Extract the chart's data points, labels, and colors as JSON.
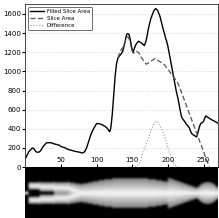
{
  "xlim": [
    0,
    270
  ],
  "ylim": [
    0,
    1700
  ],
  "yticks": [
    0,
    200,
    400,
    600,
    800,
    1000,
    1200,
    1400,
    1600
  ],
  "xticks": [
    50,
    100,
    150,
    200,
    250
  ],
  "grid_color": "#c8c8c8",
  "line_filled_color": "#000000",
  "line_slice_color": "#555555",
  "line_diff_color": "#999999",
  "legend_labels": [
    "Filled Slice Area",
    "Slice Area",
    "Difference"
  ],
  "filled_slice_area": [
    [
      1,
      100
    ],
    [
      5,
      160
    ],
    [
      8,
      185
    ],
    [
      10,
      200
    ],
    [
      12,
      195
    ],
    [
      15,
      160
    ],
    [
      18,
      155
    ],
    [
      20,
      160
    ],
    [
      22,
      175
    ],
    [
      25,
      215
    ],
    [
      28,
      240
    ],
    [
      30,
      255
    ],
    [
      33,
      255
    ],
    [
      36,
      255
    ],
    [
      38,
      250
    ],
    [
      40,
      245
    ],
    [
      42,
      240
    ],
    [
      45,
      235
    ],
    [
      48,
      228
    ],
    [
      50,
      215
    ],
    [
      55,
      205
    ],
    [
      60,
      185
    ],
    [
      65,
      175
    ],
    [
      70,
      165
    ],
    [
      75,
      158
    ],
    [
      80,
      148
    ],
    [
      83,
      158
    ],
    [
      86,
      200
    ],
    [
      89,
      270
    ],
    [
      92,
      340
    ],
    [
      95,
      390
    ],
    [
      98,
      430
    ],
    [
      100,
      455
    ],
    [
      103,
      455
    ],
    [
      106,
      448
    ],
    [
      109,
      438
    ],
    [
      112,
      425
    ],
    [
      115,
      405
    ],
    [
      117,
      385
    ],
    [
      118,
      370
    ],
    [
      119,
      380
    ],
    [
      120,
      410
    ],
    [
      122,
      550
    ],
    [
      124,
      750
    ],
    [
      126,
      950
    ],
    [
      128,
      1080
    ],
    [
      130,
      1140
    ],
    [
      132,
      1160
    ],
    [
      134,
      1180
    ],
    [
      136,
      1200
    ],
    [
      137,
      1220
    ],
    [
      138,
      1250
    ],
    [
      139,
      1280
    ],
    [
      140,
      1310
    ],
    [
      141,
      1350
    ],
    [
      142,
      1380
    ],
    [
      143,
      1390
    ],
    [
      144,
      1395
    ],
    [
      145,
      1390
    ],
    [
      146,
      1370
    ],
    [
      147,
      1340
    ],
    [
      148,
      1300
    ],
    [
      149,
      1260
    ],
    [
      150,
      1220
    ],
    [
      151,
      1200
    ],
    [
      152,
      1220
    ],
    [
      153,
      1240
    ],
    [
      154,
      1260
    ],
    [
      155,
      1280
    ],
    [
      156,
      1290
    ],
    [
      157,
      1300
    ],
    [
      158,
      1310
    ],
    [
      159,
      1315
    ],
    [
      160,
      1310
    ],
    [
      161,
      1305
    ],
    [
      162,
      1300
    ],
    [
      163,
      1295
    ],
    [
      164,
      1290
    ],
    [
      165,
      1280
    ],
    [
      166,
      1280
    ],
    [
      167,
      1270
    ],
    [
      168,
      1290
    ],
    [
      169,
      1310
    ],
    [
      170,
      1340
    ],
    [
      171,
      1380
    ],
    [
      172,
      1420
    ],
    [
      173,
      1460
    ],
    [
      174,
      1490
    ],
    [
      175,
      1520
    ],
    [
      176,
      1550
    ],
    [
      177,
      1570
    ],
    [
      178,
      1590
    ],
    [
      179,
      1610
    ],
    [
      180,
      1630
    ],
    [
      181,
      1640
    ],
    [
      182,
      1650
    ],
    [
      183,
      1655
    ],
    [
      184,
      1650
    ],
    [
      185,
      1640
    ],
    [
      186,
      1630
    ],
    [
      187,
      1610
    ],
    [
      188,
      1590
    ],
    [
      189,
      1570
    ],
    [
      190,
      1540
    ],
    [
      191,
      1510
    ],
    [
      192,
      1480
    ],
    [
      193,
      1450
    ],
    [
      194,
      1420
    ],
    [
      195,
      1400
    ],
    [
      196,
      1370
    ],
    [
      197,
      1340
    ],
    [
      198,
      1320
    ],
    [
      199,
      1290
    ],
    [
      200,
      1260
    ],
    [
      201,
      1220
    ],
    [
      202,
      1180
    ],
    [
      203,
      1140
    ],
    [
      204,
      1100
    ],
    [
      205,
      1060
    ],
    [
      206,
      1020
    ],
    [
      207,
      980
    ],
    [
      208,
      940
    ],
    [
      209,
      900
    ],
    [
      210,
      860
    ],
    [
      211,
      820
    ],
    [
      212,
      780
    ],
    [
      213,
      750
    ],
    [
      214,
      720
    ],
    [
      215,
      680
    ],
    [
      216,
      640
    ],
    [
      217,
      600
    ],
    [
      218,
      560
    ],
    [
      219,
      530
    ],
    [
      220,
      510
    ],
    [
      221,
      500
    ],
    [
      222,
      490
    ],
    [
      223,
      480
    ],
    [
      224,
      470
    ],
    [
      225,
      455
    ],
    [
      226,
      445
    ],
    [
      227,
      440
    ],
    [
      228,
      430
    ],
    [
      229,
      420
    ],
    [
      230,
      410
    ],
    [
      231,
      390
    ],
    [
      232,
      370
    ],
    [
      233,
      355
    ],
    [
      234,
      345
    ],
    [
      235,
      340
    ],
    [
      236,
      335
    ],
    [
      237,
      330
    ],
    [
      238,
      325
    ],
    [
      239,
      320
    ],
    [
      240,
      315
    ],
    [
      241,
      330
    ],
    [
      242,
      360
    ],
    [
      243,
      390
    ],
    [
      244,
      420
    ],
    [
      245,
      440
    ],
    [
      246,
      455
    ],
    [
      247,
      460
    ],
    [
      248,
      465
    ],
    [
      249,
      470
    ],
    [
      250,
      480
    ],
    [
      251,
      500
    ],
    [
      252,
      520
    ],
    [
      253,
      535
    ],
    [
      254,
      530
    ],
    [
      255,
      525
    ],
    [
      256,
      520
    ],
    [
      257,
      515
    ],
    [
      258,
      510
    ],
    [
      259,
      505
    ],
    [
      260,
      500
    ],
    [
      265,
      480
    ],
    [
      270,
      460
    ]
  ],
  "slice_area": [
    [
      130,
      1140
    ],
    [
      131,
      1165
    ],
    [
      132,
      1190
    ],
    [
      133,
      1210
    ],
    [
      134,
      1220
    ],
    [
      135,
      1230
    ],
    [
      136,
      1240
    ],
    [
      137,
      1250
    ],
    [
      138,
      1270
    ],
    [
      139,
      1290
    ],
    [
      140,
      1310
    ],
    [
      141,
      1330
    ],
    [
      142,
      1345
    ],
    [
      143,
      1355
    ],
    [
      144,
      1360
    ],
    [
      145,
      1350
    ],
    [
      146,
      1330
    ],
    [
      147,
      1300
    ],
    [
      148,
      1270
    ],
    [
      149,
      1240
    ],
    [
      150,
      1215
    ],
    [
      151,
      1195
    ],
    [
      152,
      1190
    ],
    [
      153,
      1200
    ],
    [
      154,
      1210
    ],
    [
      155,
      1215
    ],
    [
      156,
      1210
    ],
    [
      157,
      1205
    ],
    [
      158,
      1200
    ],
    [
      159,
      1195
    ],
    [
      160,
      1185
    ],
    [
      161,
      1170
    ],
    [
      162,
      1150
    ],
    [
      163,
      1140
    ],
    [
      164,
      1135
    ],
    [
      165,
      1120
    ],
    [
      166,
      1110
    ],
    [
      167,
      1100
    ],
    [
      168,
      1090
    ],
    [
      169,
      1080
    ],
    [
      170,
      1075
    ],
    [
      171,
      1080
    ],
    [
      172,
      1085
    ],
    [
      173,
      1090
    ],
    [
      174,
      1095
    ],
    [
      175,
      1100
    ],
    [
      176,
      1105
    ],
    [
      177,
      1110
    ],
    [
      178,
      1115
    ],
    [
      179,
      1120
    ],
    [
      180,
      1125
    ],
    [
      181,
      1130
    ],
    [
      182,
      1135
    ],
    [
      183,
      1130
    ],
    [
      184,
      1125
    ],
    [
      185,
      1120
    ],
    [
      186,
      1115
    ],
    [
      187,
      1110
    ],
    [
      188,
      1105
    ],
    [
      189,
      1100
    ],
    [
      190,
      1095
    ],
    [
      191,
      1090
    ],
    [
      192,
      1085
    ],
    [
      193,
      1080
    ],
    [
      194,
      1075
    ],
    [
      195,
      1070
    ],
    [
      196,
      1060
    ],
    [
      197,
      1050
    ],
    [
      198,
      1040
    ],
    [
      199,
      1030
    ],
    [
      200,
      1020
    ],
    [
      201,
      1010
    ],
    [
      202,
      1000
    ],
    [
      203,
      990
    ],
    [
      204,
      980
    ],
    [
      205,
      970
    ],
    [
      206,
      960
    ],
    [
      207,
      950
    ],
    [
      208,
      940
    ],
    [
      209,
      930
    ],
    [
      210,
      920
    ],
    [
      211,
      910
    ],
    [
      212,
      900
    ],
    [
      213,
      890
    ],
    [
      214,
      875
    ],
    [
      215,
      860
    ],
    [
      216,
      840
    ],
    [
      217,
      820
    ],
    [
      218,
      800
    ],
    [
      219,
      780
    ],
    [
      220,
      760
    ],
    [
      221,
      740
    ],
    [
      222,
      720
    ],
    [
      223,
      700
    ],
    [
      224,
      680
    ],
    [
      225,
      660
    ],
    [
      226,
      640
    ],
    [
      227,
      620
    ],
    [
      228,
      600
    ],
    [
      229,
      580
    ],
    [
      230,
      560
    ],
    [
      231,
      540
    ],
    [
      232,
      520
    ],
    [
      233,
      500
    ],
    [
      234,
      480
    ],
    [
      235,
      460
    ],
    [
      236,
      440
    ],
    [
      237,
      420
    ],
    [
      238,
      400
    ],
    [
      239,
      380
    ],
    [
      240,
      360
    ],
    [
      241,
      340
    ],
    [
      242,
      320
    ],
    [
      243,
      300
    ],
    [
      244,
      280
    ],
    [
      245,
      260
    ],
    [
      246,
      240
    ],
    [
      247,
      220
    ],
    [
      248,
      200
    ],
    [
      249,
      180
    ],
    [
      250,
      160
    ],
    [
      251,
      140
    ],
    [
      252,
      120
    ],
    [
      253,
      100
    ],
    [
      254,
      80
    ],
    [
      255,
      60
    ],
    [
      256,
      40
    ],
    [
      257,
      20
    ],
    [
      258,
      5
    ]
  ],
  "difference": [
    [
      145,
      0
    ],
    [
      150,
      5
    ],
    [
      155,
      10
    ],
    [
      158,
      20
    ],
    [
      160,
      40
    ],
    [
      162,
      70
    ],
    [
      163,
      100
    ],
    [
      164,
      130
    ],
    [
      165,
      160
    ],
    [
      166,
      180
    ],
    [
      167,
      190
    ],
    [
      168,
      210
    ],
    [
      169,
      230
    ],
    [
      170,
      250
    ],
    [
      171,
      270
    ],
    [
      172,
      290
    ],
    [
      173,
      310
    ],
    [
      174,
      330
    ],
    [
      175,
      350
    ],
    [
      176,
      370
    ],
    [
      177,
      395
    ],
    [
      178,
      415
    ],
    [
      179,
      430
    ],
    [
      180,
      445
    ],
    [
      181,
      460
    ],
    [
      182,
      470
    ],
    [
      183,
      475
    ],
    [
      184,
      480
    ],
    [
      185,
      478
    ],
    [
      186,
      470
    ],
    [
      187,
      455
    ],
    [
      188,
      440
    ],
    [
      189,
      430
    ],
    [
      190,
      415
    ],
    [
      191,
      400
    ],
    [
      192,
      385
    ],
    [
      193,
      365
    ],
    [
      194,
      345
    ],
    [
      195,
      325
    ],
    [
      196,
      305
    ],
    [
      197,
      280
    ],
    [
      198,
      255
    ],
    [
      199,
      230
    ],
    [
      200,
      200
    ],
    [
      201,
      175
    ],
    [
      202,
      150
    ],
    [
      203,
      130
    ],
    [
      204,
      110
    ],
    [
      205,
      90
    ],
    [
      206,
      70
    ],
    [
      207,
      55
    ],
    [
      208,
      40
    ],
    [
      209,
      30
    ],
    [
      210,
      20
    ],
    [
      211,
      15
    ],
    [
      212,
      10
    ],
    [
      213,
      5
    ],
    [
      214,
      2
    ],
    [
      215,
      0
    ]
  ]
}
